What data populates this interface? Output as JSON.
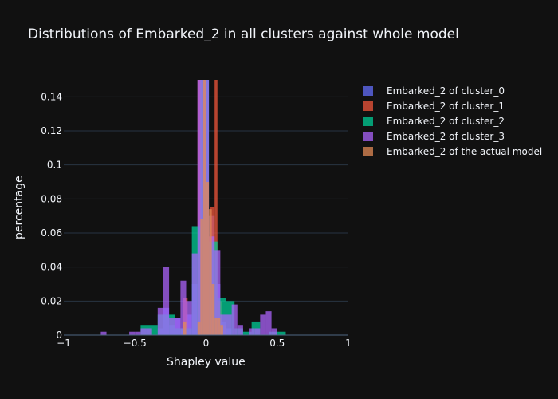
{
  "chart_data": {
    "type": "bar",
    "barmode": "overlay",
    "title": "Distributions of Embarked_2 in all clusters against whole model",
    "xlabel": "Shapley value",
    "ylabel": "percentage",
    "xlim": [
      -1,
      1
    ],
    "ylim": [
      0,
      0.15
    ],
    "x_ticks": [
      -1,
      -0.5,
      0,
      0.5,
      1
    ],
    "x_tick_labels": [
      "−1",
      "−0.5",
      "0",
      "0.5",
      "1"
    ],
    "y_ticks": [
      0,
      0.02,
      0.04,
      0.06,
      0.08,
      0.1,
      0.12,
      0.14
    ],
    "y_tick_labels": [
      "0",
      "0.02",
      "0.04",
      "0.06",
      "0.08",
      "0.1",
      "0.12",
      "0.14"
    ],
    "grid": true,
    "legend_position": "top-right",
    "series": [
      {
        "name": "Embarked_2 of cluster_0",
        "color": "#636efa",
        "bins": [
          {
            "x0": -0.34,
            "x1": -0.3,
            "y": 0.004
          },
          {
            "x0": -0.3,
            "x1": -0.26,
            "y": 0.016
          },
          {
            "x0": -0.26,
            "x1": -0.22,
            "y": 0.006
          },
          {
            "x0": -0.22,
            "x1": -0.18,
            "y": 0.01
          },
          {
            "x0": -0.18,
            "x1": -0.14,
            "y": 0.004
          },
          {
            "x0": -0.14,
            "x1": -0.1,
            "y": 0.012
          },
          {
            "x0": -0.1,
            "x1": -0.06,
            "y": 0.03
          },
          {
            "x0": -0.06,
            "x1": -0.02,
            "y": 0.15
          },
          {
            "x0": -0.02,
            "x1": 0.02,
            "y": 0.15
          },
          {
            "x0": 0.02,
            "x1": 0.06,
            "y": 0.07
          },
          {
            "x0": 0.06,
            "x1": 0.1,
            "y": 0.03
          },
          {
            "x0": 0.1,
            "x1": 0.14,
            "y": 0.008
          },
          {
            "x0": 0.14,
            "x1": 0.18,
            "y": 0.004
          }
        ]
      },
      {
        "name": "Embarked_2 of cluster_1",
        "color": "#ef553b",
        "bins": [
          {
            "x0": -0.16,
            "x1": -0.13,
            "y": 0.022
          },
          {
            "x0": -0.06,
            "x1": -0.03,
            "y": 0.15
          },
          {
            "x0": 0.03,
            "x1": 0.06,
            "y": 0.075
          },
          {
            "x0": 0.06,
            "x1": 0.08,
            "y": 0.15
          },
          {
            "x0": 0.08,
            "x1": 0.11,
            "y": 0.02
          },
          {
            "x0": 0.11,
            "x1": 0.14,
            "y": 0.006
          }
        ]
      },
      {
        "name": "Embarked_2 of cluster_2",
        "color": "#00cc96",
        "bins": [
          {
            "x0": -0.46,
            "x1": -0.34,
            "y": 0.006
          },
          {
            "x0": -0.34,
            "x1": -0.22,
            "y": 0.012
          },
          {
            "x0": -0.22,
            "x1": -0.1,
            "y": 0.004
          },
          {
            "x0": -0.1,
            "x1": -0.04,
            "y": 0.064
          },
          {
            "x0": -0.04,
            "x1": 0.02,
            "y": 0.15
          },
          {
            "x0": 0.02,
            "x1": 0.08,
            "y": 0.055
          },
          {
            "x0": 0.08,
            "x1": 0.14,
            "y": 0.022
          },
          {
            "x0": 0.14,
            "x1": 0.2,
            "y": 0.02
          },
          {
            "x0": 0.2,
            "x1": 0.26,
            "y": 0.004
          },
          {
            "x0": 0.26,
            "x1": 0.32,
            "y": 0.002
          },
          {
            "x0": 0.32,
            "x1": 0.38,
            "y": 0.008
          },
          {
            "x0": 0.44,
            "x1": 0.5,
            "y": 0.002
          },
          {
            "x0": 0.5,
            "x1": 0.56,
            "y": 0.002
          }
        ]
      },
      {
        "name": "Embarked_2 of cluster_3",
        "color": "#ab63fa",
        "bins": [
          {
            "x0": -0.74,
            "x1": -0.7,
            "y": 0.002
          },
          {
            "x0": -0.54,
            "x1": -0.5,
            "y": 0.002
          },
          {
            "x0": -0.5,
            "x1": -0.46,
            "y": 0.002
          },
          {
            "x0": -0.46,
            "x1": -0.42,
            "y": 0.004
          },
          {
            "x0": -0.42,
            "x1": -0.38,
            "y": 0.004
          },
          {
            "x0": -0.34,
            "x1": -0.3,
            "y": 0.016
          },
          {
            "x0": -0.3,
            "x1": -0.26,
            "y": 0.04
          },
          {
            "x0": -0.26,
            "x1": -0.22,
            "y": 0.01
          },
          {
            "x0": -0.22,
            "x1": -0.18,
            "y": 0.01
          },
          {
            "x0": -0.18,
            "x1": -0.14,
            "y": 0.032
          },
          {
            "x0": -0.14,
            "x1": -0.1,
            "y": 0.02
          },
          {
            "x0": -0.1,
            "x1": -0.06,
            "y": 0.048
          },
          {
            "x0": -0.06,
            "x1": -0.02,
            "y": 0.15
          },
          {
            "x0": -0.02,
            "x1": 0.02,
            "y": 0.15
          },
          {
            "x0": 0.02,
            "x1": 0.06,
            "y": 0.058
          },
          {
            "x0": 0.06,
            "x1": 0.1,
            "y": 0.05
          },
          {
            "x0": 0.1,
            "x1": 0.14,
            "y": 0.012
          },
          {
            "x0": 0.14,
            "x1": 0.18,
            "y": 0.012
          },
          {
            "x0": 0.18,
            "x1": 0.22,
            "y": 0.018
          },
          {
            "x0": 0.22,
            "x1": 0.26,
            "y": 0.006
          },
          {
            "x0": 0.3,
            "x1": 0.34,
            "y": 0.004
          },
          {
            "x0": 0.34,
            "x1": 0.38,
            "y": 0.004
          },
          {
            "x0": 0.38,
            "x1": 0.42,
            "y": 0.012
          },
          {
            "x0": 0.42,
            "x1": 0.46,
            "y": 0.014
          },
          {
            "x0": 0.46,
            "x1": 0.5,
            "y": 0.004
          }
        ]
      },
      {
        "name": "Embarked_2 of the actual model",
        "color": "#e18a55",
        "bins": [
          {
            "x0": -0.16,
            "x1": -0.14,
            "y": 0.008
          },
          {
            "x0": -0.06,
            "x1": -0.04,
            "y": 0.008
          },
          {
            "x0": -0.04,
            "x1": -0.02,
            "y": 0.068
          },
          {
            "x0": -0.02,
            "x1": 0.0,
            "y": 0.15
          },
          {
            "x0": 0.0,
            "x1": 0.02,
            "y": 0.09
          },
          {
            "x0": 0.02,
            "x1": 0.04,
            "y": 0.074
          },
          {
            "x0": 0.04,
            "x1": 0.06,
            "y": 0.03
          },
          {
            "x0": 0.06,
            "x1": 0.08,
            "y": 0.01
          },
          {
            "x0": 0.08,
            "x1": 0.1,
            "y": 0.01
          },
          {
            "x0": 0.1,
            "x1": 0.12,
            "y": 0.006
          }
        ]
      }
    ]
  }
}
